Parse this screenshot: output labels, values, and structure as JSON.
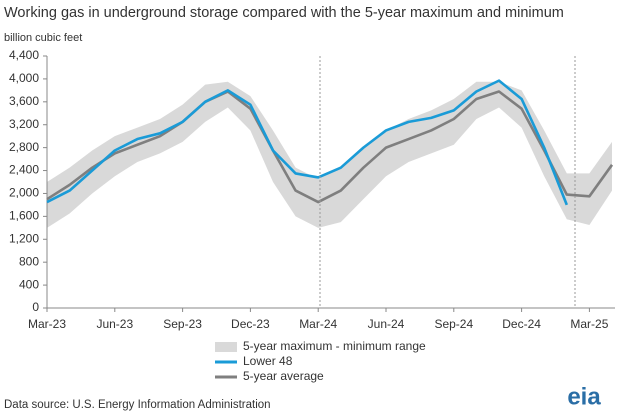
{
  "chart_data": {
    "type": "line",
    "title": "Working gas in underground  storage compared with the 5-year maximum and minimum",
    "y_label": "billion cubic feet",
    "source": "Data source:  U.S. Energy Information Administration",
    "logo": "eia",
    "categories": [
      "Mar-23",
      null,
      null,
      "Jun-23",
      null,
      null,
      "Sep-23",
      null,
      null,
      "Dec-23",
      null,
      null,
      "Mar-24",
      null,
      null,
      "Jun-24",
      null,
      null,
      "Sep-24",
      null,
      null,
      "Dec-24",
      null,
      null,
      "Mar-25",
      null
    ],
    "ylim": [
      0,
      4400
    ],
    "yticks": [
      0,
      400,
      800,
      {
        "value": 1200,
        "label": "1,200"
      },
      {
        "value": 1600,
        "label": "1,600"
      },
      {
        "value": 2000,
        "label": "2,000"
      },
      {
        "value": 2400,
        "label": "2,400"
      },
      {
        "value": 2800,
        "label": "2,800"
      },
      {
        "value": 3200,
        "label": "3,200"
      },
      {
        "value": 3600,
        "label": "3,600"
      },
      {
        "value": 4000,
        "label": "4,000"
      },
      {
        "value": 4400,
        "label": "4,400"
      }
    ],
    "grid": false,
    "range": {
      "name": "5-year maximum - minimum range",
      "color": "#d9d9d9",
      "max": [
        2200,
        2450,
        2750,
        3000,
        3150,
        3300,
        3550,
        3900,
        3950,
        3700,
        3100,
        2450,
        2250,
        2450,
        2800,
        3100,
        3300,
        3450,
        3650,
        3950,
        3950,
        3800,
        3100,
        2350,
        2350,
        2900
      ],
      "min": [
        1400,
        1650,
        2000,
        2300,
        2550,
        2700,
        2900,
        3250,
        3500,
        3100,
        2200,
        1600,
        1400,
        1500,
        1900,
        2300,
        2550,
        2700,
        2850,
        3300,
        3500,
        3150,
        2300,
        1550,
        1450,
        2050
      ]
    },
    "series": [
      {
        "name": "Lower 48",
        "color": "#1a9bd7",
        "values": [
          1850,
          2050,
          2400,
          2750,
          2950,
          3050,
          3250,
          3600,
          3800,
          3550,
          2750,
          2350,
          2280,
          2450,
          2800,
          3100,
          3250,
          3320,
          3450,
          3780,
          3970,
          3650,
          2800,
          1800,
          null,
          null
        ]
      },
      {
        "name": "5-year average",
        "color": "#7f7f7f",
        "values": [
          1900,
          2150,
          2450,
          2700,
          2850,
          3000,
          3250,
          3600,
          3780,
          3480,
          2750,
          2050,
          1850,
          2050,
          2450,
          2800,
          2950,
          3100,
          3300,
          3650,
          3780,
          3480,
          2750,
          1980,
          1950,
          2500
        ]
      }
    ]
  }
}
